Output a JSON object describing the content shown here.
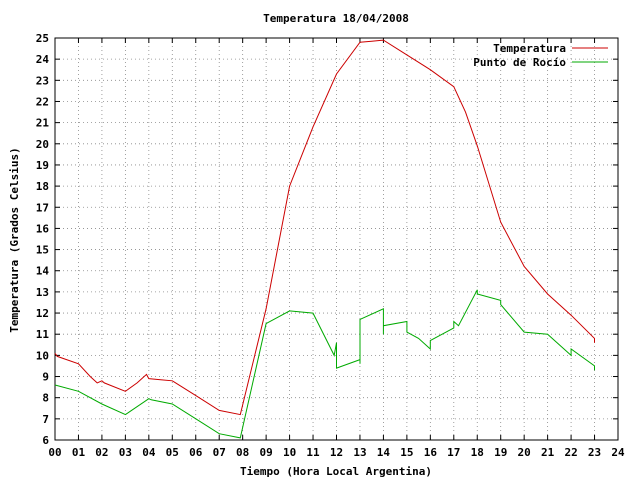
{
  "chart_data": {
    "type": "line",
    "title": "Temperatura 18/04/2008",
    "xlabel": "Tiempo (Hora Local Argentina)",
    "ylabel": "Temperatura (Grados Celsius)",
    "xlim": [
      0,
      24
    ],
    "ylim": [
      6,
      25
    ],
    "grid": true,
    "legend_position": "top-right",
    "x_ticks": [
      "00",
      "01",
      "02",
      "03",
      "04",
      "05",
      "06",
      "07",
      "08",
      "09",
      "10",
      "11",
      "12",
      "13",
      "14",
      "15",
      "16",
      "17",
      "18",
      "19",
      "20",
      "21",
      "22",
      "23",
      "24"
    ],
    "y_ticks": [
      6,
      7,
      8,
      9,
      10,
      11,
      12,
      13,
      14,
      15,
      16,
      17,
      18,
      19,
      20,
      21,
      22,
      23,
      24,
      25
    ],
    "series": [
      {
        "name": "Temperatura",
        "color": "#cc0000",
        "points": [
          [
            0.0,
            10.1
          ],
          [
            0.1,
            9.95
          ],
          [
            1.0,
            9.6
          ],
          [
            1.5,
            9.0
          ],
          [
            1.8,
            8.7
          ],
          [
            2.0,
            8.8
          ],
          [
            2.1,
            8.7
          ],
          [
            3.0,
            8.3
          ],
          [
            3.5,
            8.7
          ],
          [
            3.9,
            9.1
          ],
          [
            4.0,
            8.9
          ],
          [
            4.5,
            8.85
          ],
          [
            5.0,
            8.8
          ],
          [
            6.0,
            8.1
          ],
          [
            7.0,
            7.4
          ],
          [
            7.9,
            7.2
          ],
          [
            9.0,
            12.2
          ],
          [
            10.0,
            18.0
          ],
          [
            11.0,
            20.8
          ],
          [
            12.0,
            23.3
          ],
          [
            13.0,
            24.8
          ],
          [
            13.5,
            24.85
          ],
          [
            14.0,
            24.9
          ],
          [
            15.0,
            24.2
          ],
          [
            16.0,
            23.5
          ],
          [
            17.0,
            22.7
          ],
          [
            17.5,
            21.5
          ],
          [
            18.0,
            19.9
          ],
          [
            19.0,
            16.3
          ],
          [
            20.0,
            14.2
          ],
          [
            21.0,
            12.9
          ],
          [
            22.0,
            11.9
          ],
          [
            23.0,
            10.8
          ],
          [
            23.0,
            10.6
          ]
        ]
      },
      {
        "name": "Punto de Rocío",
        "color": "#00aa00",
        "points": [
          [
            0.0,
            8.6
          ],
          [
            1.0,
            8.3
          ],
          [
            2.0,
            7.7
          ],
          [
            3.0,
            7.2
          ],
          [
            4.0,
            7.95
          ],
          [
            4.1,
            7.9
          ],
          [
            5.0,
            7.7
          ],
          [
            6.0,
            7.0
          ],
          [
            7.0,
            6.3
          ],
          [
            7.9,
            6.1
          ],
          [
            9.0,
            11.5
          ],
          [
            10.0,
            12.1
          ],
          [
            11.0,
            12.0
          ],
          [
            11.9,
            10.0
          ],
          [
            12.0,
            10.6
          ],
          [
            12.0,
            9.4
          ],
          [
            13.0,
            9.8
          ],
          [
            13.0,
            9.6
          ],
          [
            13.0,
            11.7
          ],
          [
            14.0,
            12.2
          ],
          [
            14.0,
            11.0
          ],
          [
            14.0,
            11.4
          ],
          [
            15.0,
            11.6
          ],
          [
            15.0,
            11.1
          ],
          [
            15.5,
            10.8
          ],
          [
            16.0,
            10.3
          ],
          [
            16.0,
            10.7
          ],
          [
            17.0,
            11.3
          ],
          [
            17.0,
            11.6
          ],
          [
            17.2,
            11.4
          ],
          [
            18.0,
            13.1
          ],
          [
            18.0,
            12.9
          ],
          [
            19.0,
            12.6
          ],
          [
            19.0,
            12.4
          ],
          [
            20.0,
            11.1
          ],
          [
            21.0,
            11.0
          ],
          [
            22.0,
            10.0
          ],
          [
            22.0,
            10.3
          ],
          [
            23.0,
            9.5
          ],
          [
            23.0,
            9.3
          ]
        ]
      }
    ]
  }
}
